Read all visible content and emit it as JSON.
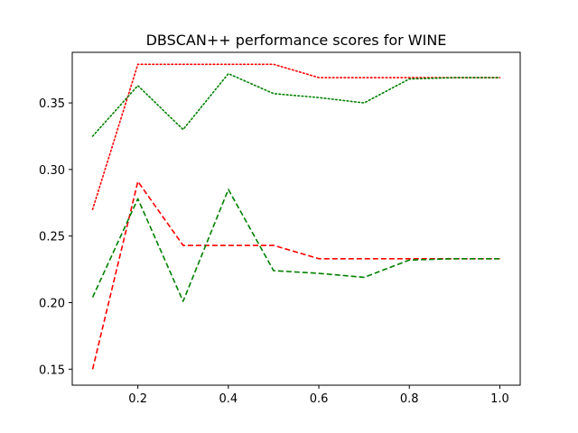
{
  "chart_data": {
    "type": "line",
    "title": "DBSCAN++ performance scores for WINE",
    "xlabel": "",
    "ylabel": "",
    "xlim": [
      0.055,
      1.045
    ],
    "ylim": [
      0.138,
      0.388
    ],
    "x_ticks": [
      0.2,
      0.4,
      0.6,
      0.8,
      1.0
    ],
    "x_tick_labels": [
      "0.2",
      "0.4",
      "0.6",
      "0.8",
      "1.0"
    ],
    "y_ticks": [
      0.15,
      0.2,
      0.25,
      0.3,
      0.35
    ],
    "y_tick_labels": [
      "0.15",
      "0.20",
      "0.25",
      "0.30",
      "0.35"
    ],
    "grid": false,
    "legend": "none",
    "x": [
      0.1,
      0.2,
      0.3,
      0.4,
      0.5,
      0.6,
      0.7,
      0.8,
      0.9,
      1.0
    ],
    "series": [
      {
        "color": "#ff0000",
        "style": "dotted",
        "values": [
          0.27,
          0.379,
          0.379,
          0.379,
          0.379,
          0.369,
          0.369,
          0.369,
          0.369,
          0.369
        ]
      },
      {
        "color": "#008000",
        "style": "dotted",
        "values": [
          0.325,
          0.363,
          0.33,
          0.372,
          0.357,
          0.354,
          0.35,
          0.368,
          0.369,
          0.369
        ]
      },
      {
        "color": "#ff0000",
        "style": "dashed",
        "values": [
          0.15,
          0.291,
          0.243,
          0.243,
          0.243,
          0.233,
          0.233,
          0.233,
          0.233,
          0.233
        ]
      },
      {
        "color": "#008000",
        "style": "dashed",
        "values": [
          0.204,
          0.278,
          0.201,
          0.285,
          0.224,
          0.222,
          0.219,
          0.232,
          0.233,
          0.233
        ]
      }
    ]
  }
}
